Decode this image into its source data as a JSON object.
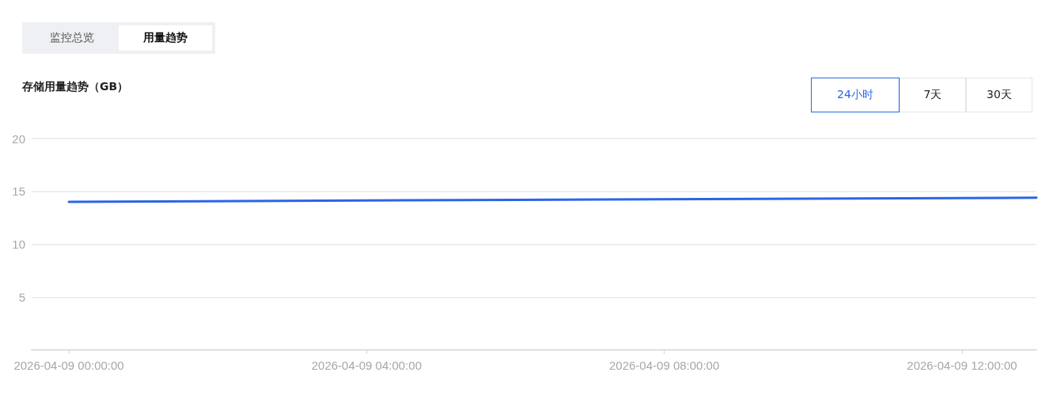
{
  "chart_data": {
    "type": "line",
    "title": "存储用量趋势（GB）",
    "annotations": [
      "监控总览",
      "用量趋势",
      "24小时",
      "7天",
      "30天"
    ],
    "x": [
      "2026-04-09T00:00",
      "2026-04-09T06:00",
      "2026-04-09T13:00"
    ],
    "series": [
      {
        "color": "#2b65e5",
        "values": [
          14.0,
          14.2,
          14.4
        ]
      }
    ],
    "xlim": [
      "2026-04-08T23:30",
      "2026-04-09T13:00"
    ],
    "xticks": [
      {
        "value": "2026-04-09T00:00",
        "label": "2026-04-09 00:00:00"
      },
      {
        "value": "2026-04-09T04:00",
        "label": "2026-04-09 04:00:00"
      },
      {
        "value": "2026-04-09T08:00",
        "label": "2026-04-09 08:00:00"
      },
      {
        "value": "2026-04-09T12:00",
        "label": "2026-04-09 12:00:00"
      }
    ],
    "ylim": [
      0,
      20
    ],
    "yticks": [
      {
        "value": 0,
        "label": null
      },
      5,
      10,
      15,
      20
    ],
    "grid": "y",
    "marker": "none",
    "line_style": "solid"
  }
}
